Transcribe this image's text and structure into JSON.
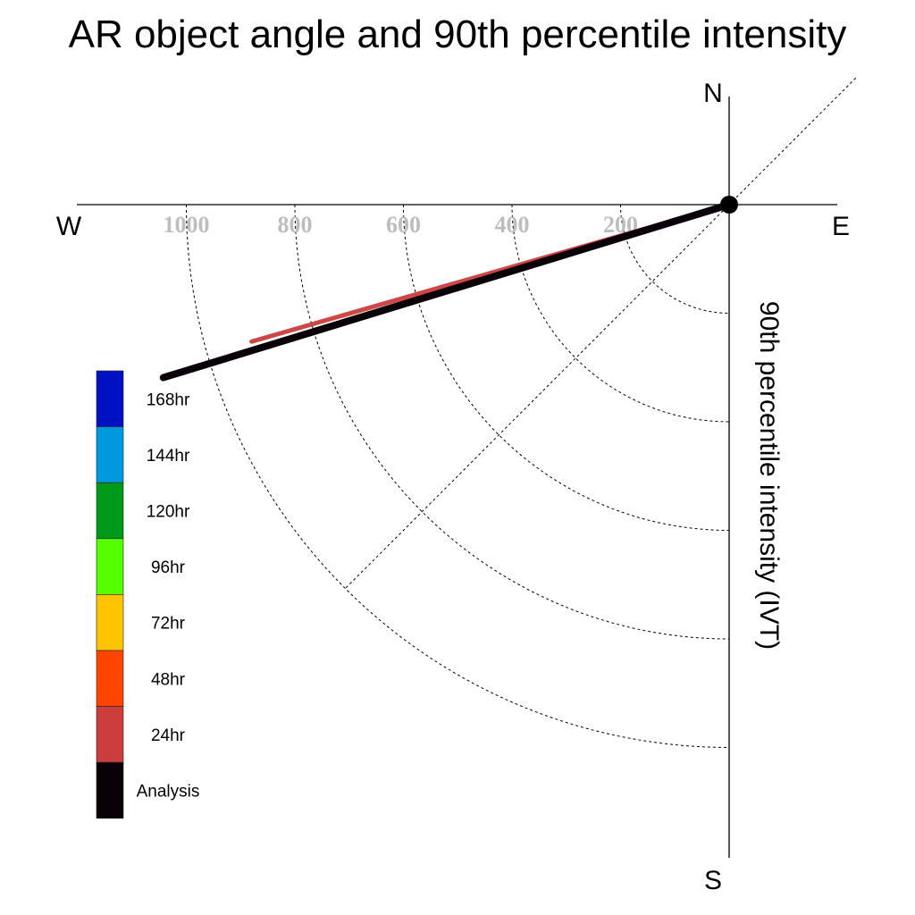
{
  "chart_data": {
    "type": "line",
    "title": "AR object angle and 90th percentile intensity",
    "ylabel": "90th percentile intensity (IVT)",
    "compass": {
      "n": "N",
      "e": "E",
      "s": "S",
      "w": "W"
    },
    "radial_ticks": [
      200,
      400,
      600,
      800,
      1000
    ],
    "radial_tick_labels": [
      "200",
      "400",
      "600",
      "800",
      "1000"
    ],
    "rmax": 1200,
    "grid": true,
    "legend": {
      "placement": "bottom-left",
      "entries": [
        {
          "label": "168hr",
          "color": "#0011c4"
        },
        {
          "label": "144hr",
          "color": "#0099dd"
        },
        {
          "label": "120hr",
          "color": "#009a1a"
        },
        {
          "label": "96hr",
          "color": "#55ff00"
        },
        {
          "label": "72hr",
          "color": "#ffc400"
        },
        {
          "label": "48hr",
          "color": "#ff4400"
        },
        {
          "label": "24hr",
          "color": "#cc3d3d"
        },
        {
          "label": "Analysis",
          "color": "#0a0007"
        }
      ]
    },
    "series": [
      {
        "name": "24hr",
        "color": "#cc3d3d",
        "angle_deg": 254,
        "intensity": 915
      },
      {
        "name": "Analysis",
        "color": "#0a0007",
        "angle_deg": 253,
        "intensity": 1090
      }
    ]
  }
}
